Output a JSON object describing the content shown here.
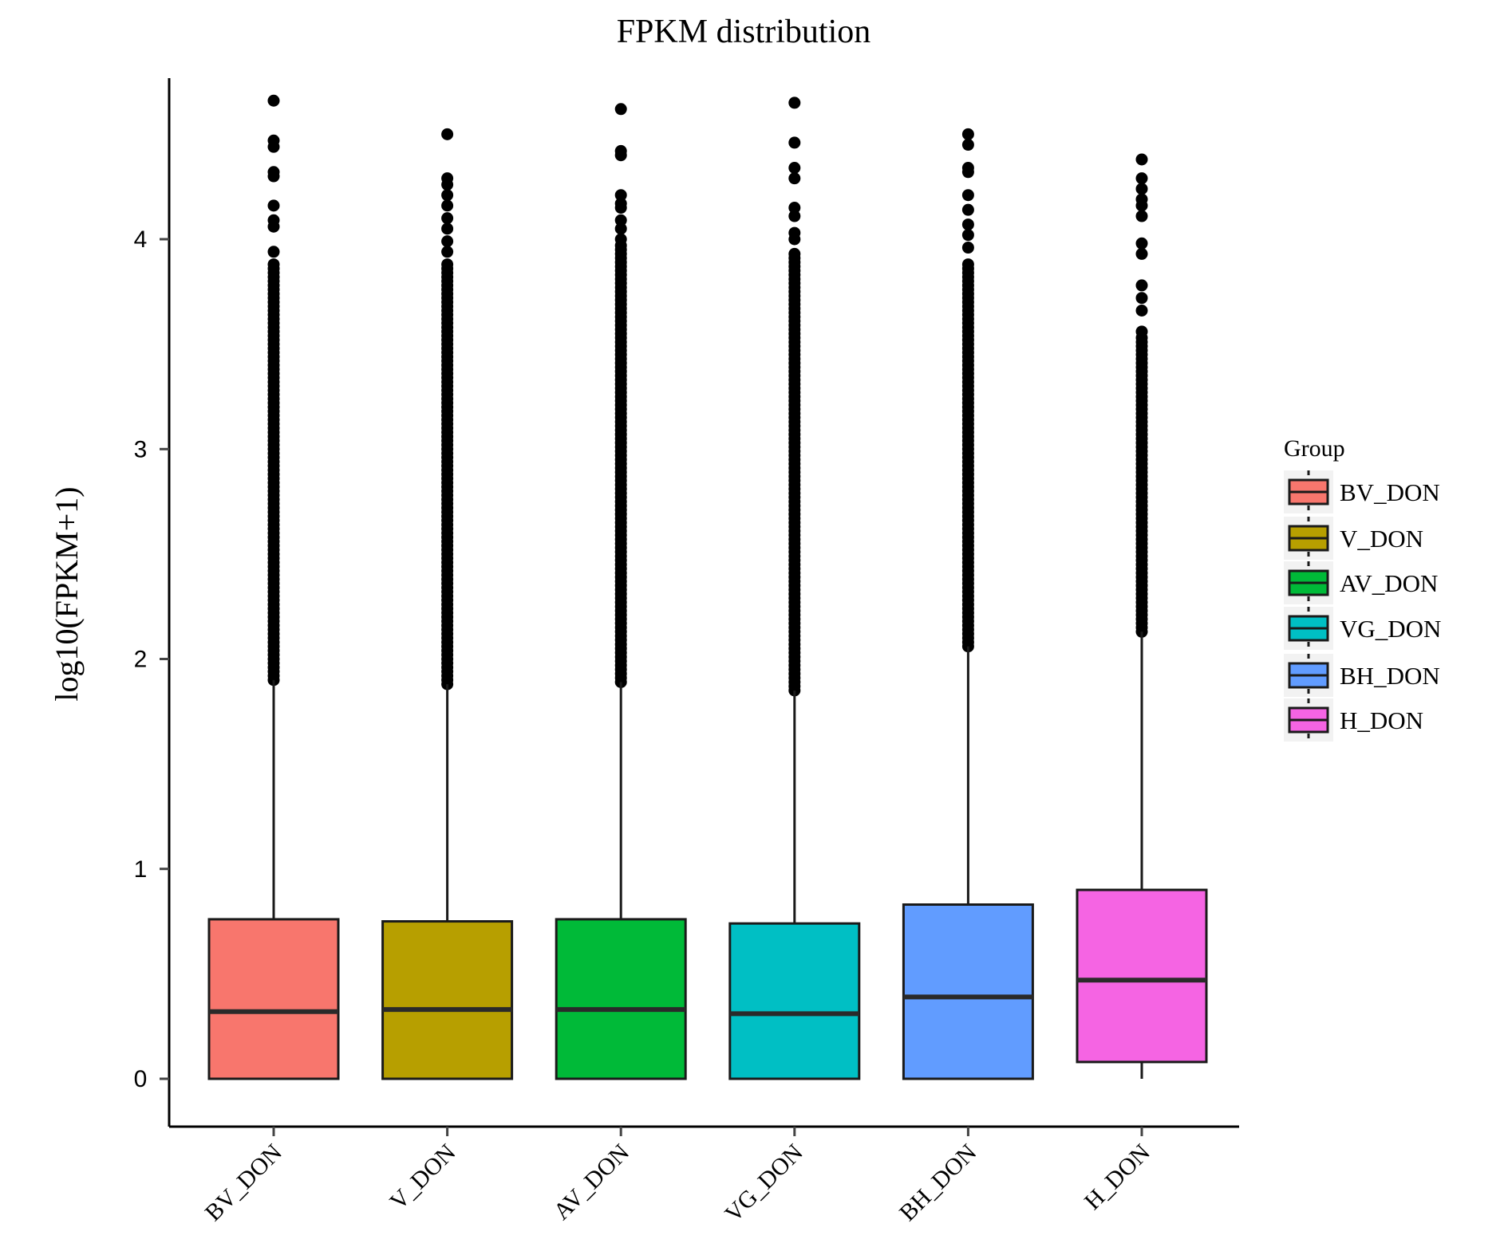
{
  "chart_data": {
    "type": "box",
    "title": "FPKM distribution",
    "xlabel": "",
    "ylabel": "log10(FPKM+1)",
    "ylim": [
      -0.23,
      4.8
    ],
    "yticks": [
      "0",
      "1",
      "2",
      "3",
      "4"
    ],
    "ytick_values": [
      0,
      1,
      2,
      3,
      4
    ],
    "grid": false,
    "legend": {
      "title": "Group",
      "placement": "right"
    },
    "categories": [
      "BV_DON",
      "V_DON",
      "AV_DON",
      "VG_DON",
      "BH_DON",
      "H_DON"
    ],
    "series": [
      {
        "name": "BV_DON",
        "color": "#F8766D",
        "q1": 0,
        "median": 0.32,
        "q3": 0.76,
        "whisker_low": 0,
        "whisker_high": 1.9,
        "outliers_discrete": [
          4.66,
          4.47,
          4.44,
          4.32,
          4.3,
          4.16,
          4.09,
          4.06,
          3.94
        ],
        "outliers_dense_range": [
          1.9,
          3.9
        ]
      },
      {
        "name": "V_DON",
        "color": "#B79F00",
        "q1": 0,
        "median": 0.33,
        "q3": 0.75,
        "whisker_low": 0,
        "whisker_high": 1.88,
        "outliers_discrete": [
          4.5,
          4.29,
          4.26,
          4.21,
          4.16,
          4.1,
          4.05,
          3.99,
          3.94
        ],
        "outliers_dense_range": [
          1.88,
          3.9
        ]
      },
      {
        "name": "AV_DON",
        "color": "#00BA38",
        "q1": 0,
        "median": 0.33,
        "q3": 0.76,
        "whisker_low": 0,
        "whisker_high": 1.89,
        "outliers_discrete": [
          4.62,
          4.42,
          4.4,
          4.21,
          4.17,
          4.15,
          4.09,
          4.05,
          4.0
        ],
        "outliers_dense_range": [
          1.89,
          3.98
        ]
      },
      {
        "name": "VG_DON",
        "color": "#00BFC4",
        "q1": 0,
        "median": 0.31,
        "q3": 0.74,
        "whisker_low": 0,
        "whisker_high": 1.85,
        "outliers_discrete": [
          4.65,
          4.46,
          4.34,
          4.29,
          4.15,
          4.11,
          4.03,
          4.0
        ],
        "outliers_dense_range": [
          1.85,
          3.95
        ]
      },
      {
        "name": "BH_DON",
        "color": "#619CFF",
        "q1": 0,
        "median": 0.39,
        "q3": 0.83,
        "whisker_low": 0,
        "whisker_high": 2.06,
        "outliers_discrete": [
          4.5,
          4.45,
          4.34,
          4.32,
          4.21,
          4.14,
          4.07,
          4.02,
          3.96
        ],
        "outliers_dense_range": [
          2.06,
          3.9
        ]
      },
      {
        "name": "H_DON",
        "color": "#F564E3",
        "q1": 0.08,
        "median": 0.47,
        "q3": 0.9,
        "whisker_low": 0,
        "whisker_high": 2.13,
        "outliers_discrete": [
          4.38,
          4.29,
          4.24,
          4.19,
          4.16,
          4.11,
          3.98,
          3.93,
          3.78,
          3.72,
          3.66,
          3.56
        ],
        "outliers_dense_range": [
          2.13,
          3.55
        ]
      }
    ]
  }
}
